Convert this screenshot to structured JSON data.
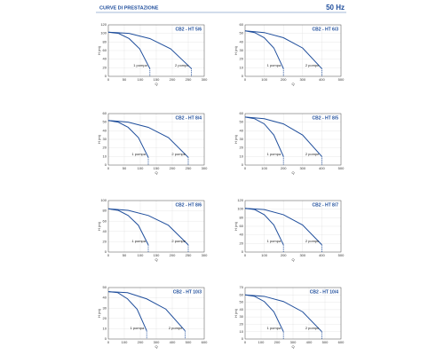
{
  "header": {
    "title": "CURVE DI PRESTAZIONE",
    "frequency": "50 Hz"
  },
  "chart_data": [
    {
      "type": "line",
      "title": "CB2 - HT 5/6",
      "xlabel": "Q",
      "ylabel": "H (m)",
      "xlim": [
        0,
        300
      ],
      "xticks": [
        0,
        50,
        100,
        150,
        200,
        250,
        300
      ],
      "ylim": [
        0,
        120
      ],
      "yticks": [
        0,
        20,
        40,
        60,
        80,
        100,
        120
      ],
      "grid": true,
      "series": [
        {
          "name": "1 pompa",
          "color": "#1f4e9c",
          "x": [
            0,
            32,
            65,
            98,
            130
          ],
          "values": [
            103,
            100,
            88,
            64,
            18
          ]
        },
        {
          "name": "2 pompe",
          "color": "#1f4e9c",
          "x": [
            0,
            65,
            130,
            195,
            260
          ],
          "values": [
            103,
            100,
            88,
            64,
            18
          ]
        }
      ]
    },
    {
      "type": "line",
      "title": "CB2 - HT 6/3",
      "xlabel": "Q",
      "ylabel": "H (m)",
      "xlim": [
        0,
        500
      ],
      "xticks": [
        0,
        100,
        200,
        300,
        400,
        500
      ],
      "ylim": [
        0,
        60
      ],
      "yticks": [
        0,
        10,
        20,
        30,
        40,
        50,
        60
      ],
      "grid": true,
      "series": [
        {
          "name": "1 pompa",
          "color": "#1f4e9c",
          "x": [
            0,
            50,
            100,
            150,
            200
          ],
          "values": [
            53,
            51,
            45,
            33,
            9
          ]
        },
        {
          "name": "2 pompe",
          "color": "#1f4e9c",
          "x": [
            0,
            100,
            200,
            300,
            400
          ],
          "values": [
            53,
            51,
            45,
            33,
            9
          ]
        }
      ]
    },
    {
      "type": "line",
      "title": "CB2 - HT 8/4",
      "xlabel": "Q",
      "ylabel": "H (m)",
      "xlim": [
        0,
        300
      ],
      "xticks": [
        0,
        50,
        100,
        150,
        200,
        250,
        300
      ],
      "ylim": [
        0,
        60
      ],
      "yticks": [
        0,
        10,
        20,
        30,
        40,
        50,
        60
      ],
      "grid": true,
      "series": [
        {
          "name": "1 pompa",
          "color": "#1f4e9c",
          "x": [
            0,
            31,
            62,
            94,
            125
          ],
          "values": [
            52,
            50,
            44,
            32,
            9
          ]
        },
        {
          "name": "2 pompe",
          "color": "#1f4e9c",
          "x": [
            0,
            62,
            125,
            188,
            250
          ],
          "values": [
            52,
            50,
            44,
            32,
            9
          ]
        }
      ]
    },
    {
      "type": "line",
      "title": "CB2 - HT 8/5",
      "xlabel": "Q",
      "ylabel": "H (m)",
      "xlim": [
        0,
        500
      ],
      "xticks": [
        0,
        100,
        200,
        300,
        400,
        500
      ],
      "ylim": [
        0,
        60
      ],
      "yticks": [
        0,
        10,
        20,
        30,
        40,
        50,
        60
      ],
      "grid": true,
      "series": [
        {
          "name": "1 pompa",
          "color": "#1f4e9c",
          "x": [
            0,
            50,
            100,
            150,
            200
          ],
          "values": [
            56,
            54,
            48,
            35,
            10
          ]
        },
        {
          "name": "2 pompe",
          "color": "#1f4e9c",
          "x": [
            0,
            100,
            200,
            300,
            400
          ],
          "values": [
            56,
            54,
            48,
            35,
            10
          ]
        }
      ]
    },
    {
      "type": "line",
      "title": "CB2 - HT 8/6",
      "xlabel": "Q",
      "ylabel": "H (m)",
      "xlim": [
        0,
        300
      ],
      "xticks": [
        0,
        50,
        100,
        150,
        200,
        250,
        300
      ],
      "ylim": [
        0,
        100
      ],
      "yticks": [
        0,
        20,
        40,
        60,
        80,
        100
      ],
      "grid": true,
      "series": [
        {
          "name": "1 pompa",
          "color": "#1f4e9c",
          "x": [
            0,
            31,
            62,
            94,
            125
          ],
          "values": [
            84,
            81,
            71,
            52,
            14
          ]
        },
        {
          "name": "2 pompe",
          "color": "#1f4e9c",
          "x": [
            0,
            62,
            125,
            188,
            250
          ],
          "values": [
            84,
            81,
            71,
            52,
            14
          ]
        }
      ]
    },
    {
      "type": "line",
      "title": "CB2 - HT 8/7",
      "xlabel": "Q",
      "ylabel": "H (m)",
      "xlim": [
        0,
        500
      ],
      "xticks": [
        0,
        100,
        200,
        300,
        400,
        500
      ],
      "ylim": [
        0,
        120
      ],
      "yticks": [
        0,
        20,
        40,
        60,
        80,
        100,
        120
      ],
      "grid": true,
      "series": [
        {
          "name": "1 pompa",
          "color": "#1f4e9c",
          "x": [
            0,
            50,
            100,
            150,
            200
          ],
          "values": [
            102,
            99,
            87,
            63,
            17
          ]
        },
        {
          "name": "2 pompe",
          "color": "#1f4e9c",
          "x": [
            0,
            100,
            200,
            300,
            400
          ],
          "values": [
            102,
            99,
            87,
            63,
            17
          ]
        }
      ]
    },
    {
      "type": "line",
      "title": "CB2 - HT 10/3",
      "xlabel": "Q",
      "ylabel": "H (m)",
      "xlim": [
        0,
        600
      ],
      "xticks": [
        0,
        100,
        200,
        300,
        400,
        500,
        600
      ],
      "ylim": [
        0,
        50
      ],
      "yticks": [
        0,
        10,
        20,
        30,
        40,
        50
      ],
      "grid": true,
      "series": [
        {
          "name": "1 pompa",
          "color": "#1f4e9c",
          "x": [
            0,
            60,
            120,
            180,
            240
          ],
          "values": [
            46,
            45,
            39,
            29,
            8
          ]
        },
        {
          "name": "2 pompe",
          "color": "#1f4e9c",
          "x": [
            0,
            120,
            240,
            360,
            480
          ],
          "values": [
            46,
            45,
            39,
            29,
            8
          ]
        }
      ]
    },
    {
      "type": "line",
      "title": "CB2 - HT 10/4",
      "xlabel": "Q",
      "ylabel": "H (m)",
      "xlim": [
        0,
        600
      ],
      "xticks": [
        0,
        100,
        200,
        300,
        400,
        500,
        600
      ],
      "ylim": [
        0,
        70
      ],
      "yticks": [
        0,
        10,
        20,
        30,
        40,
        50,
        60,
        70
      ],
      "grid": true,
      "series": [
        {
          "name": "1 pompa",
          "color": "#1f4e9c",
          "x": [
            0,
            60,
            120,
            180,
            240
          ],
          "values": [
            60,
            58,
            51,
            37,
            10
          ]
        },
        {
          "name": "2 pompe",
          "color": "#1f4e9c",
          "x": [
            0,
            120,
            240,
            360,
            480
          ],
          "values": [
            60,
            58,
            51,
            37,
            10
          ]
        }
      ]
    }
  ]
}
